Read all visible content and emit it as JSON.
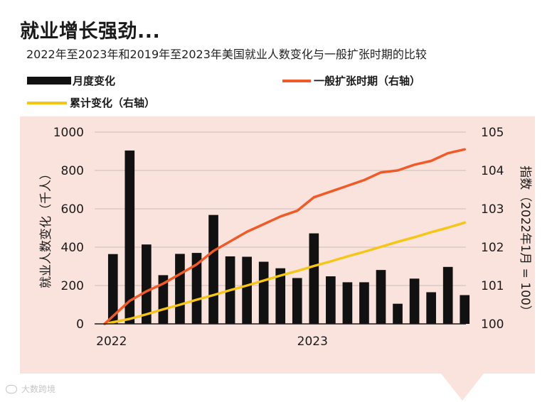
{
  "title": "就业增长强劲...",
  "subtitle": "2022年至2023年和2019年至2023年美国就业人数变化与一般扩张时期的比较",
  "legend": {
    "bar": "月度变化",
    "expansion": "一般扩张时期（右轴）",
    "cumulative": "累计变化（右轴）"
  },
  "watermark": "大数跨境",
  "colors": {
    "bar": "#111111",
    "expansion": "#f05a28",
    "cumulative": "#f5c518",
    "panel": "#fbe3dd"
  },
  "chart_data": {
    "type": "bar",
    "title": "就业增长强劲...",
    "subtitle": "2022年至2023年和2019年至2023年美国就业人数变化与一般扩张时期的比较",
    "ylabel": "就业人数变化（千人）",
    "ylabel_right": "指数（2022年1月 = 100）",
    "ylim": [
      0,
      1000
    ],
    "yticks": [
      0,
      200,
      400,
      600,
      800,
      1000
    ],
    "ylim_right": [
      100,
      105
    ],
    "yticks_right": [
      100,
      101,
      102,
      103,
      104,
      105
    ],
    "x_tick_labels": [
      {
        "index": 0,
        "label": "2022"
      },
      {
        "index": 12,
        "label": "2023"
      }
    ],
    "series": [
      {
        "name": "月度变化",
        "type": "bar",
        "axis": "left",
        "values": [
          364,
          904,
          414,
          254,
          365,
          370,
          568,
          352,
          350,
          324,
          290,
          239,
          472,
          248,
          217,
          217,
          281,
          105,
          236,
          165,
          297,
          150
        ]
      },
      {
        "name": "一般扩张时期（右轴）",
        "type": "line",
        "axis": "right",
        "values": [
          100,
          100.6,
          100.85,
          101.05,
          101.3,
          101.55,
          101.9,
          102.15,
          102.4,
          102.6,
          102.8,
          102.95,
          103.3,
          103.45,
          103.6,
          103.75,
          103.95,
          104.0,
          104.15,
          104.25,
          104.45,
          104.55
        ]
      },
      {
        "name": "累计变化（右轴）",
        "type": "line",
        "axis": "right",
        "values": [
          100,
          100.13,
          100.25,
          100.38,
          100.5,
          100.63,
          100.75,
          100.88,
          101.0,
          101.13,
          101.26,
          101.38,
          101.51,
          101.63,
          101.76,
          101.88,
          102.01,
          102.14,
          102.26,
          102.39,
          102.51,
          102.64
        ]
      }
    ]
  }
}
